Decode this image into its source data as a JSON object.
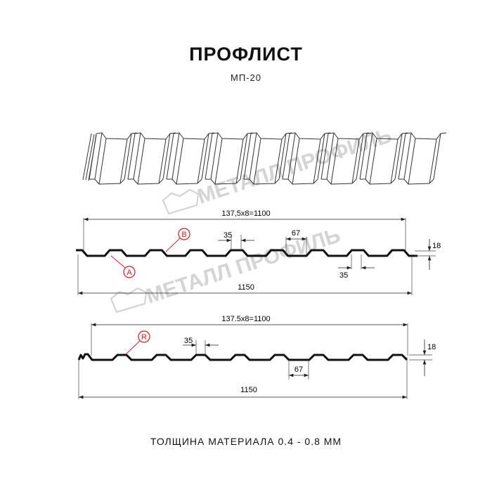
{
  "header": {
    "title": "ПРОФЛИСТ",
    "model": "МП-20"
  },
  "watermark": {
    "text": "МЕТАЛЛ ПРОФИЛЬ",
    "color": "#cfcfcf"
  },
  "profile_a": {
    "pitch_label": "137,5x8=1100",
    "rib_top_label": "35",
    "rib_bottom_label": "35",
    "valley_label": "67",
    "height_label": "18",
    "width_label": "1150",
    "marker_b": "B",
    "marker_a": "A"
  },
  "profile_b": {
    "pitch_label": "137.5x8=1100",
    "rib_top_label": "35",
    "valley_label": "67",
    "height_label": "18",
    "width_label": "1150",
    "marker_r": "R"
  },
  "footer": {
    "thickness": "ТОЛЩИНА МАТЕРИАЛА 0.4 - 0.8 ММ"
  },
  "colors": {
    "marker": "#e8141b",
    "line": "#111111"
  }
}
